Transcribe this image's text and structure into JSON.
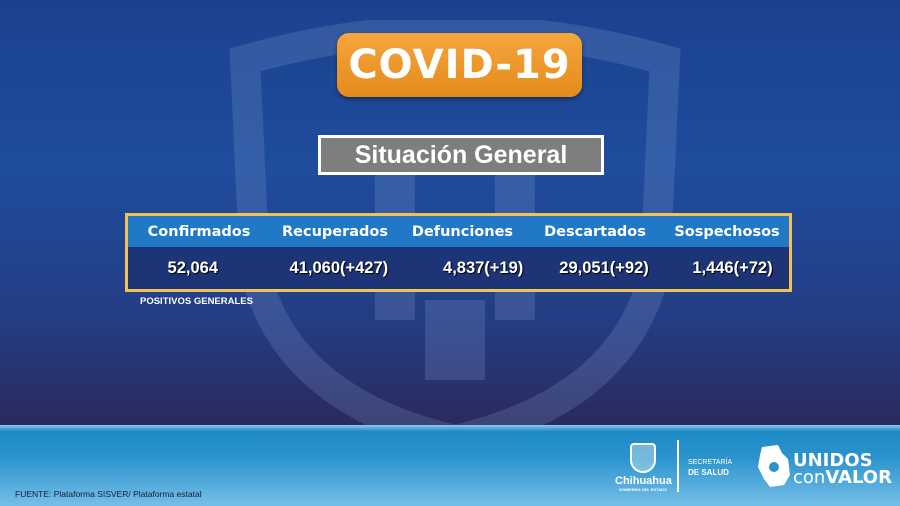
{
  "title": "COVID-19",
  "subtitle": "Situación General",
  "table": {
    "headers": [
      "Confirmados",
      "Recuperados",
      "Defunciones",
      "Descartados",
      "Sospechosos"
    ],
    "values": [
      "52,064",
      "41,060(+427)",
      "4,837(+19)",
      "29,051(+92)",
      "1,446(+72)"
    ]
  },
  "note": "POSITIVOS GENERALES",
  "footer": {
    "source": "FUENTE: Plataforma SISVER/  Plataforma estatal",
    "logo_chihuahua": {
      "name": "Chihuahua",
      "sub": "GOBIERNO DEL ESTADO"
    },
    "secretaria": {
      "line1": "SECRETARÍA",
      "line2": "DE SALUD"
    },
    "campaign": {
      "line1": "UNIDOS",
      "line2a": "con",
      "line2b": "VALOR"
    }
  },
  "colors": {
    "background": "#1b428f",
    "title_button": "#f0a030",
    "header_row": "#2078c7",
    "table_border": "#f1c25c",
    "footer": "#2b93cc"
  }
}
